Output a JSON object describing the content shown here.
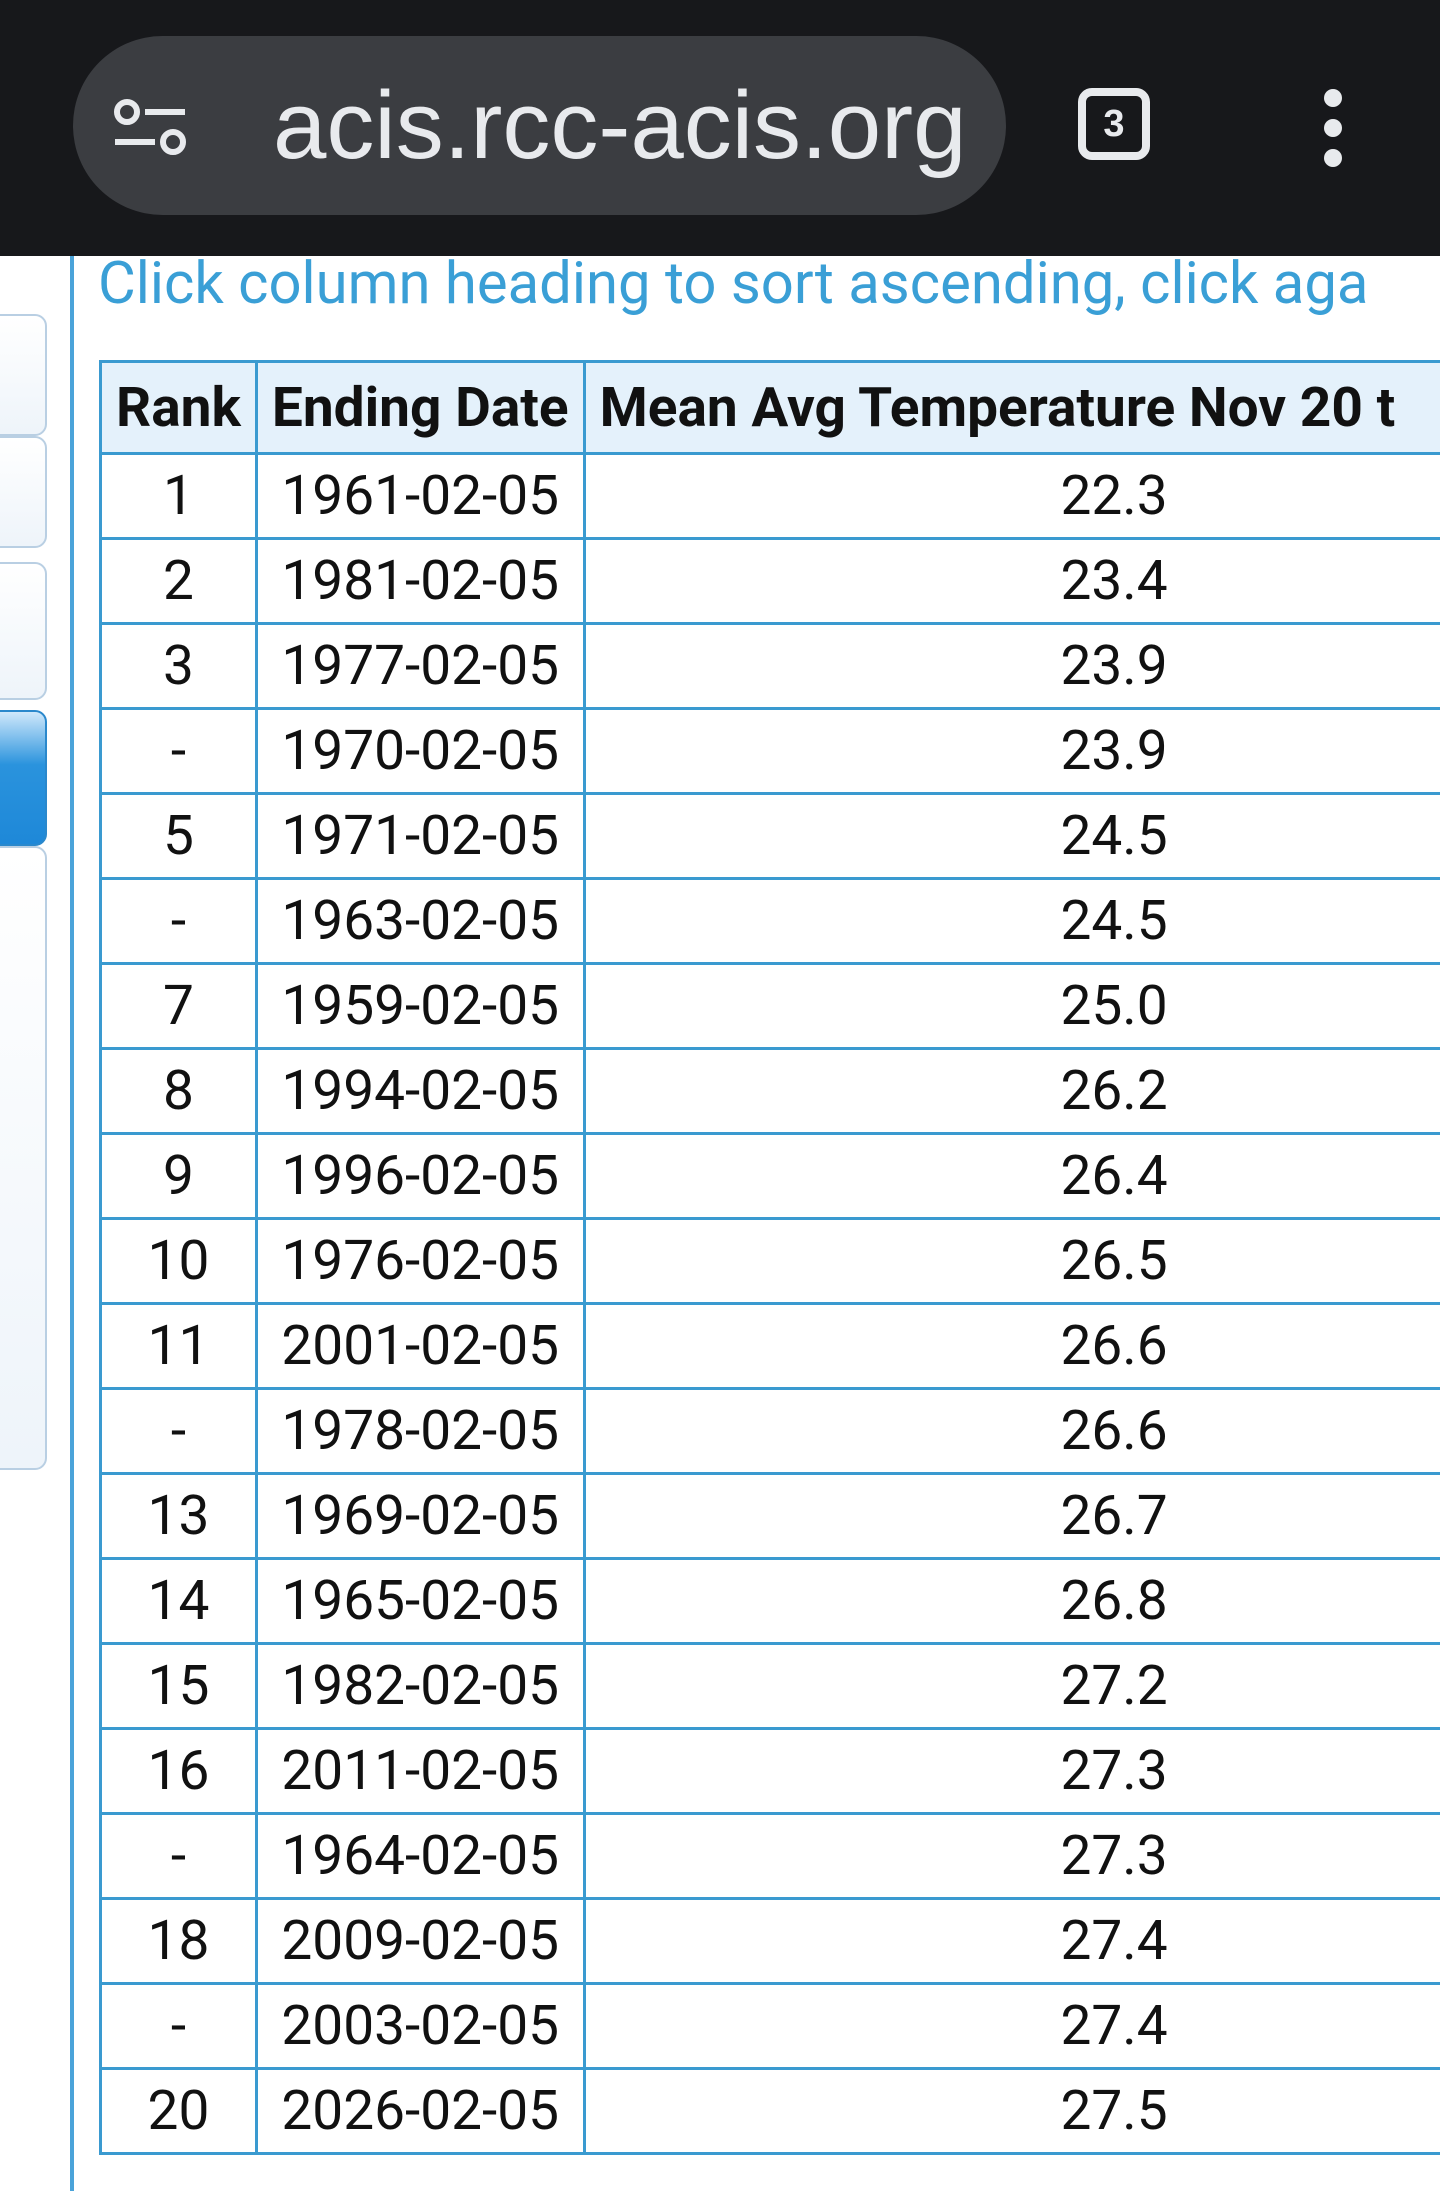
{
  "browser": {
    "url": "acis.rcc-acis.org",
    "tab_count": "3"
  },
  "instructions": "Click column heading to sort ascending, click aga",
  "table": {
    "headers": [
      "Rank",
      "Ending Date",
      "Mean Avg Temperature Nov 20 t"
    ],
    "rows": [
      [
        "1",
        "1961-02-05",
        "22.3"
      ],
      [
        "2",
        "1981-02-05",
        "23.4"
      ],
      [
        "3",
        "1977-02-05",
        "23.9"
      ],
      [
        "-",
        "1970-02-05",
        "23.9"
      ],
      [
        "5",
        "1971-02-05",
        "24.5"
      ],
      [
        "-",
        "1963-02-05",
        "24.5"
      ],
      [
        "7",
        "1959-02-05",
        "25.0"
      ],
      [
        "8",
        "1994-02-05",
        "26.2"
      ],
      [
        "9",
        "1996-02-05",
        "26.4"
      ],
      [
        "10",
        "1976-02-05",
        "26.5"
      ],
      [
        "11",
        "2001-02-05",
        "26.6"
      ],
      [
        "-",
        "1978-02-05",
        "26.6"
      ],
      [
        "13",
        "1969-02-05",
        "26.7"
      ],
      [
        "14",
        "1965-02-05",
        "26.8"
      ],
      [
        "15",
        "1982-02-05",
        "27.2"
      ],
      [
        "16",
        "2011-02-05",
        "27.3"
      ],
      [
        "-",
        "1964-02-05",
        "27.3"
      ],
      [
        "18",
        "2009-02-05",
        "27.4"
      ],
      [
        "-",
        "2003-02-05",
        "27.4"
      ],
      [
        "20",
        "2026-02-05",
        "27.5"
      ]
    ]
  }
}
